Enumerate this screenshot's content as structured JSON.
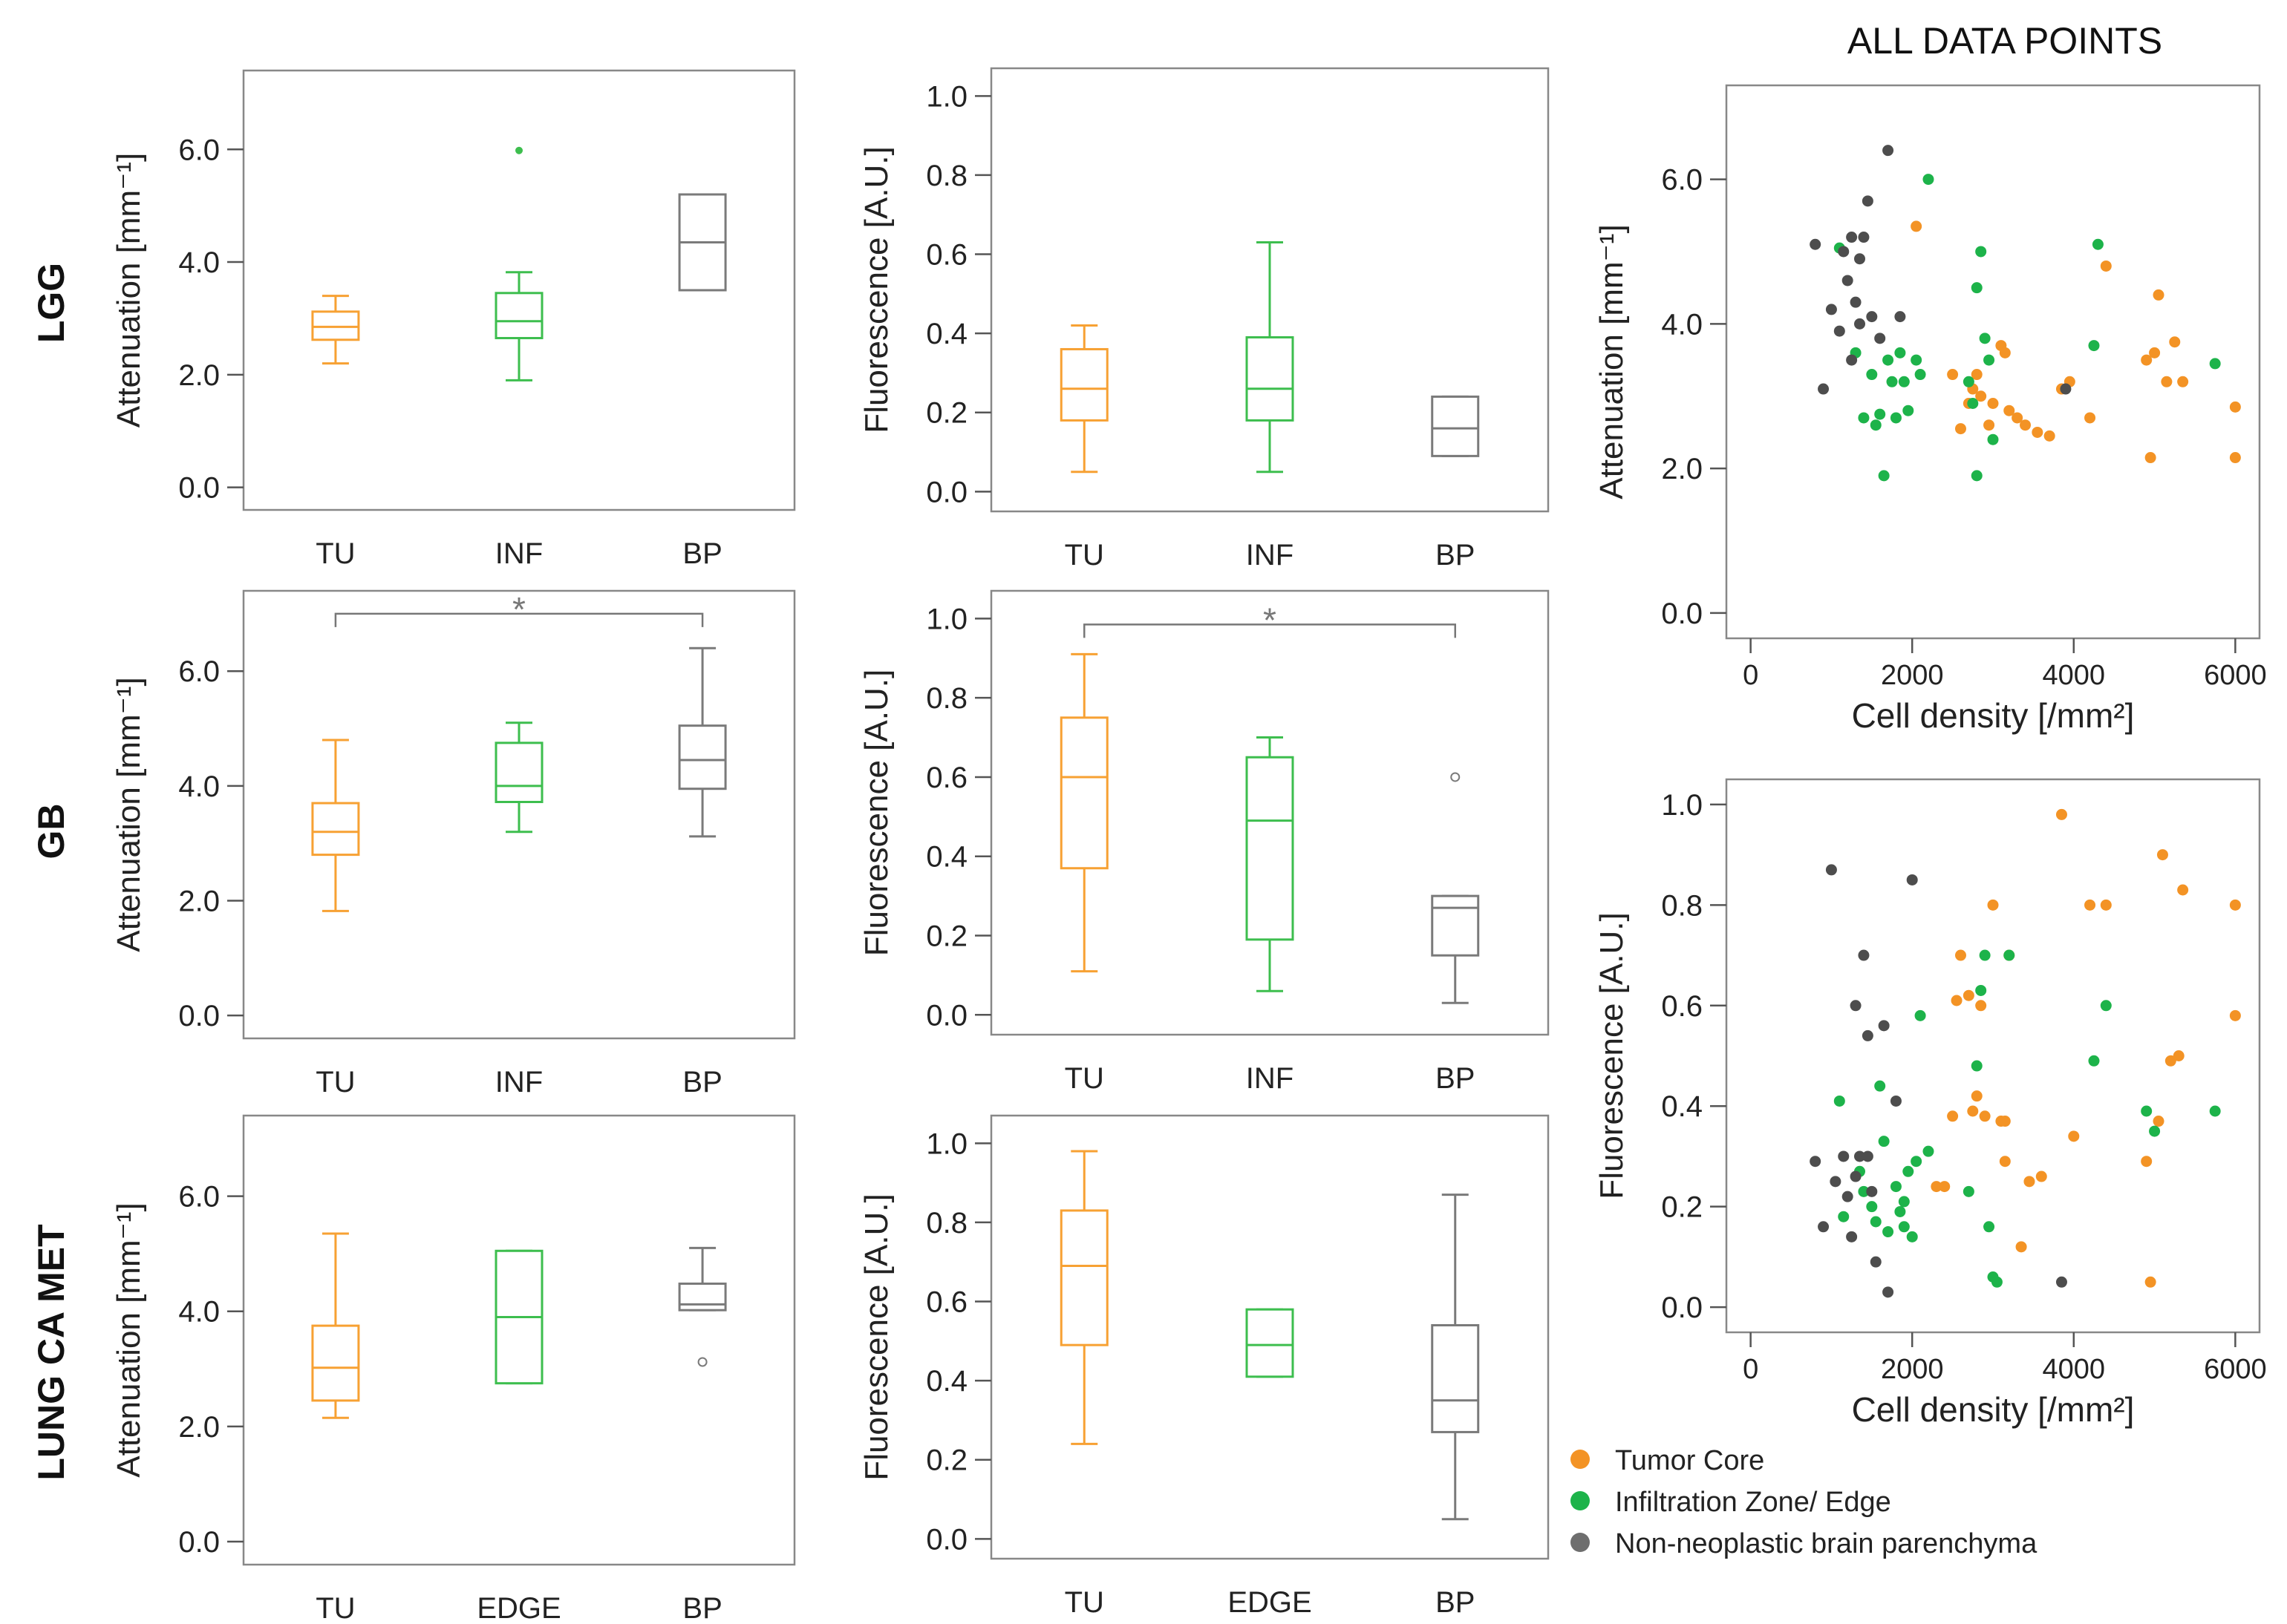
{
  "figure": {
    "panel_title": "ALL DATA POINTS",
    "row_labels": [
      "LGG",
      "GB",
      "LUNG CA MET"
    ]
  },
  "colors": {
    "tumor": "#F7A133",
    "infiltration": "#3DBE4E",
    "parenchyma": "#7A7A7A",
    "frame": "#888888",
    "tumor_dot": "#F39325",
    "infiltration_dot": "#1DB34A",
    "parenchyma_dot": "#4D4D4D"
  },
  "legend": [
    {
      "label": "Tumor Core",
      "color": "#F39325"
    },
    {
      "label": "Infiltration Zone/ Edge",
      "color": "#1DB34A"
    },
    {
      "label": "Non-neoplastic brain parenchyma",
      "color": "#6E6E6E"
    }
  ],
  "chart_data": [
    {
      "id": "lgg-att",
      "type": "box",
      "row": "LGG",
      "ylabel": "Attenuation [mm⁻¹]",
      "ylim": [
        -0.4,
        7.4
      ],
      "yticks": [
        0,
        2,
        4,
        6
      ],
      "ytick_labels": [
        "0.0",
        "2.0",
        "4.0",
        "6.0"
      ],
      "categories": [
        "TU",
        "INF",
        "BP"
      ],
      "boxes": [
        {
          "q1": 2.62,
          "median": 2.85,
          "q3": 3.12,
          "whislo": 2.2,
          "whishi": 3.4
        },
        {
          "q1": 2.65,
          "median": 2.95,
          "q3": 3.45,
          "whislo": 1.9,
          "whishi": 3.82,
          "outliers": [
            5.98
          ]
        },
        {
          "q1": 3.5,
          "median": 4.35,
          "q3": 5.2,
          "whislo": 3.5,
          "whishi": 5.2
        }
      ]
    },
    {
      "id": "lgg-flu",
      "type": "box",
      "row": "LGG",
      "ylabel": "Fluorescence [A.U.]",
      "ylim": [
        -0.05,
        1.07
      ],
      "yticks": [
        0,
        0.2,
        0.4,
        0.6,
        0.8,
        1.0
      ],
      "ytick_labels": [
        "0.0",
        "0.2",
        "0.4",
        "0.6",
        "0.8",
        "1.0"
      ],
      "categories": [
        "TU",
        "INF",
        "BP"
      ],
      "boxes": [
        {
          "q1": 0.18,
          "median": 0.26,
          "q3": 0.36,
          "whislo": 0.05,
          "whishi": 0.42
        },
        {
          "q1": 0.18,
          "median": 0.26,
          "q3": 0.39,
          "whislo": 0.05,
          "whishi": 0.63
        },
        {
          "q1": 0.09,
          "median": 0.16,
          "q3": 0.24,
          "whislo": 0.09,
          "whishi": 0.24
        }
      ]
    },
    {
      "id": "gb-att",
      "type": "box",
      "row": "GB",
      "ylabel": "Attenuation [mm⁻¹]",
      "ylim": [
        -0.4,
        7.4
      ],
      "yticks": [
        0,
        2,
        4,
        6
      ],
      "ytick_labels": [
        "0.0",
        "2.0",
        "4.0",
        "6.0"
      ],
      "categories": [
        "TU",
        "INF",
        "BP"
      ],
      "significance": {
        "from": 0,
        "to": 2,
        "label": "*",
        "y": 7.0
      },
      "boxes": [
        {
          "q1": 2.8,
          "median": 3.2,
          "q3": 3.7,
          "whislo": 1.82,
          "whishi": 4.8
        },
        {
          "q1": 3.72,
          "median": 4.0,
          "q3": 4.75,
          "whislo": 3.2,
          "whishi": 5.1
        },
        {
          "q1": 3.95,
          "median": 4.45,
          "q3": 5.05,
          "whislo": 3.12,
          "whishi": 6.4
        }
      ]
    },
    {
      "id": "gb-flu",
      "type": "box",
      "row": "GB",
      "ylabel": "Fluorescence [A.U.]",
      "ylim": [
        -0.05,
        1.07
      ],
      "yticks": [
        0,
        0.2,
        0.4,
        0.6,
        0.8,
        1.0
      ],
      "ytick_labels": [
        "0.0",
        "0.2",
        "0.4",
        "0.6",
        "0.8",
        "1.0"
      ],
      "categories": [
        "TU",
        "INF",
        "BP"
      ],
      "significance": {
        "from": 0,
        "to": 2,
        "label": "*",
        "y": 0.985
      },
      "boxes": [
        {
          "q1": 0.37,
          "median": 0.6,
          "q3": 0.75,
          "whislo": 0.11,
          "whishi": 0.91
        },
        {
          "q1": 0.19,
          "median": 0.49,
          "q3": 0.65,
          "whislo": 0.06,
          "whishi": 0.7
        },
        {
          "q1": 0.15,
          "median": 0.27,
          "q3": 0.3,
          "whislo": 0.03,
          "whishi": 0.3,
          "outliers": [
            0.6
          ]
        }
      ]
    },
    {
      "id": "lung-att",
      "type": "box",
      "row": "LUNG CA MET",
      "ylabel": "Attenuation [mm⁻¹]",
      "ylim": [
        -0.4,
        7.4
      ],
      "yticks": [
        0,
        2,
        4,
        6
      ],
      "ytick_labels": [
        "0.0",
        "2.0",
        "4.0",
        "6.0"
      ],
      "categories": [
        "TU",
        "EDGE",
        "BP"
      ],
      "boxes": [
        {
          "q1": 2.45,
          "median": 3.02,
          "q3": 3.75,
          "whislo": 2.15,
          "whishi": 5.35
        },
        {
          "q1": 2.75,
          "median": 3.9,
          "q3": 5.05,
          "whislo": 2.75,
          "whishi": 5.05
        },
        {
          "q1": 4.02,
          "median": 4.12,
          "q3": 4.48,
          "whislo": 4.02,
          "whishi": 5.1,
          "outliers": [
            3.12
          ]
        }
      ]
    },
    {
      "id": "lung-flu",
      "type": "box",
      "row": "LUNG CA MET",
      "ylabel": "Fluorescence [A.U.]",
      "ylim": [
        -0.05,
        1.07
      ],
      "yticks": [
        0,
        0.2,
        0.4,
        0.6,
        0.8,
        1.0
      ],
      "ytick_labels": [
        "0.0",
        "0.2",
        "0.4",
        "0.6",
        "0.8",
        "1.0"
      ],
      "categories": [
        "TU",
        "EDGE",
        "BP"
      ],
      "boxes": [
        {
          "q1": 0.49,
          "median": 0.69,
          "q3": 0.83,
          "whislo": 0.24,
          "whishi": 0.98
        },
        {
          "q1": 0.41,
          "median": 0.49,
          "q3": 0.58,
          "whislo": 0.41,
          "whishi": 0.58
        },
        {
          "q1": 0.27,
          "median": 0.35,
          "q3": 0.54,
          "whislo": 0.05,
          "whishi": 0.87
        }
      ]
    },
    {
      "id": "scatter-att",
      "type": "scatter",
      "ylabel": "Attenuation [mm⁻¹]",
      "xlabel": "Cell density [/mm²]",
      "xlim": [
        -300,
        6300
      ],
      "ylim": [
        -0.35,
        7.3
      ],
      "xticks": [
        0,
        2000,
        4000,
        6000
      ],
      "xtick_labels": [
        "0",
        "2000",
        "4000",
        "6000"
      ],
      "yticks": [
        0,
        2,
        4,
        6
      ],
      "ytick_labels": [
        "0.0",
        "2.0",
        "4.0",
        "6.0"
      ],
      "series": [
        {
          "name": "Tumor Core",
          "points": [
            [
              2050,
              5.35
            ],
            [
              2500,
              3.3
            ],
            [
              2600,
              2.55
            ],
            [
              2700,
              2.9
            ],
            [
              2750,
              3.1
            ],
            [
              2800,
              3.3
            ],
            [
              2850,
              3.0
            ],
            [
              2950,
              2.6
            ],
            [
              3000,
              2.9
            ],
            [
              3100,
              3.7
            ],
            [
              3150,
              3.6
            ],
            [
              3200,
              2.8
            ],
            [
              3300,
              2.7
            ],
            [
              3400,
              2.6
            ],
            [
              3550,
              2.5
            ],
            [
              3700,
              2.45
            ],
            [
              3850,
              3.1
            ],
            [
              3950,
              3.2
            ],
            [
              4200,
              2.7
            ],
            [
              4400,
              4.8
            ],
            [
              4900,
              3.5
            ],
            [
              4950,
              2.15
            ],
            [
              5000,
              3.6
            ],
            [
              5050,
              4.4
            ],
            [
              5150,
              3.2
            ],
            [
              5250,
              3.75
            ],
            [
              5350,
              3.2
            ],
            [
              6000,
              2.85
            ],
            [
              6000,
              2.15
            ]
          ]
        },
        {
          "name": "Infiltration Zone/ Edge",
          "points": [
            [
              1100,
              5.05
            ],
            [
              1300,
              3.6
            ],
            [
              1400,
              2.7
            ],
            [
              1500,
              3.3
            ],
            [
              1550,
              2.6
            ],
            [
              1600,
              2.75
            ],
            [
              1650,
              1.9
            ],
            [
              1700,
              3.5
            ],
            [
              1750,
              3.2
            ],
            [
              1800,
              2.7
            ],
            [
              1850,
              3.6
            ],
            [
              1900,
              3.2
            ],
            [
              1950,
              2.8
            ],
            [
              2050,
              3.5
            ],
            [
              2100,
              3.3
            ],
            [
              2200,
              6.0
            ],
            [
              2700,
              3.2
            ],
            [
              2750,
              2.9
            ],
            [
              2800,
              1.9
            ],
            [
              2800,
              4.5
            ],
            [
              2850,
              5.0
            ],
            [
              2900,
              3.8
            ],
            [
              2950,
              3.5
            ],
            [
              3000,
              2.4
            ],
            [
              4300,
              5.1
            ],
            [
              5750,
              3.45
            ],
            [
              4250,
              3.7
            ]
          ]
        },
        {
          "name": "Non-neoplastic brain parenchyma",
          "points": [
            [
              800,
              5.1
            ],
            [
              900,
              3.1
            ],
            [
              1000,
              4.2
            ],
            [
              1100,
              3.9
            ],
            [
              1150,
              5.0
            ],
            [
              1200,
              4.6
            ],
            [
              1250,
              5.2
            ],
            [
              1300,
              4.3
            ],
            [
              1350,
              4.0
            ],
            [
              1400,
              5.2
            ],
            [
              1450,
              5.7
            ],
            [
              1500,
              4.1
            ],
            [
              1600,
              3.8
            ],
            [
              1700,
              6.4
            ],
            [
              1850,
              4.1
            ],
            [
              3900,
              3.1
            ],
            [
              1250,
              3.5
            ],
            [
              1350,
              4.9
            ]
          ]
        }
      ]
    },
    {
      "id": "scatter-flu",
      "type": "scatter",
      "ylabel": "Fluorescence [A.U.]",
      "xlabel": "Cell density [/mm²]",
      "xlim": [
        -300,
        6300
      ],
      "ylim": [
        -0.05,
        1.05
      ],
      "xticks": [
        0,
        2000,
        4000,
        6000
      ],
      "xtick_labels": [
        "0",
        "2000",
        "4000",
        "6000"
      ],
      "yticks": [
        0,
        0.2,
        0.4,
        0.6,
        0.8,
        1.0
      ],
      "ytick_labels": [
        "0.0",
        "0.2",
        "0.4",
        "0.6",
        "0.8",
        "1.0"
      ],
      "series": [
        {
          "name": "Tumor Core",
          "points": [
            [
              2300,
              0.24
            ],
            [
              2500,
              0.38
            ],
            [
              2550,
              0.61
            ],
            [
              2600,
              0.7
            ],
            [
              2700,
              0.62
            ],
            [
              2750,
              0.39
            ],
            [
              2800,
              0.42
            ],
            [
              2850,
              0.6
            ],
            [
              2900,
              0.38
            ],
            [
              3000,
              0.8
            ],
            [
              3100,
              0.37
            ],
            [
              3150,
              0.29
            ],
            [
              3200,
              0.7
            ],
            [
              3350,
              0.12
            ],
            [
              3450,
              0.25
            ],
            [
              3600,
              0.26
            ],
            [
              3850,
              0.98
            ],
            [
              4000,
              0.34
            ],
            [
              4200,
              0.8
            ],
            [
              4400,
              0.8
            ],
            [
              4900,
              0.29
            ],
            [
              4950,
              0.05
            ],
            [
              5050,
              0.37
            ],
            [
              5100,
              0.9
            ],
            [
              5200,
              0.49
            ],
            [
              5300,
              0.5
            ],
            [
              5350,
              0.83
            ],
            [
              6000,
              0.8
            ],
            [
              6000,
              0.58
            ],
            [
              3150,
              0.37
            ],
            [
              2400,
              0.24
            ]
          ]
        },
        {
          "name": "Infiltration Zone/ Edge",
          "points": [
            [
              1100,
              0.41
            ],
            [
              1150,
              0.18
            ],
            [
              1350,
              0.27
            ],
            [
              1400,
              0.23
            ],
            [
              1500,
              0.2
            ],
            [
              1550,
              0.17
            ],
            [
              1600,
              0.44
            ],
            [
              1650,
              0.33
            ],
            [
              1700,
              0.15
            ],
            [
              1800,
              0.24
            ],
            [
              1850,
              0.19
            ],
            [
              1900,
              0.16
            ],
            [
              1950,
              0.27
            ],
            [
              2000,
              0.14
            ],
            [
              2050,
              0.29
            ],
            [
              2100,
              0.58
            ],
            [
              2200,
              0.31
            ],
            [
              2700,
              0.23
            ],
            [
              2800,
              0.48
            ],
            [
              2850,
              0.63
            ],
            [
              2900,
              0.7
            ],
            [
              2950,
              0.16
            ],
            [
              3000,
              0.06
            ],
            [
              3050,
              0.05
            ],
            [
              3200,
              0.7
            ],
            [
              4250,
              0.49
            ],
            [
              4400,
              0.6
            ],
            [
              4900,
              0.39
            ],
            [
              5000,
              0.35
            ],
            [
              5750,
              0.39
            ],
            [
              1900,
              0.21
            ]
          ]
        },
        {
          "name": "Non-neoplastic brain parenchyma",
          "points": [
            [
              800,
              0.29
            ],
            [
              900,
              0.16
            ],
            [
              1000,
              0.87
            ],
            [
              1050,
              0.25
            ],
            [
              1150,
              0.3
            ],
            [
              1200,
              0.22
            ],
            [
              1250,
              0.14
            ],
            [
              1300,
              0.6
            ],
            [
              1350,
              0.3
            ],
            [
              1400,
              0.7
            ],
            [
              1450,
              0.54
            ],
            [
              1500,
              0.23
            ],
            [
              1550,
              0.09
            ],
            [
              1650,
              0.56
            ],
            [
              1700,
              0.03
            ],
            [
              1800,
              0.41
            ],
            [
              2000,
              0.85
            ],
            [
              3850,
              0.05
            ],
            [
              1300,
              0.26
            ],
            [
              1450,
              0.3
            ]
          ]
        }
      ]
    }
  ]
}
